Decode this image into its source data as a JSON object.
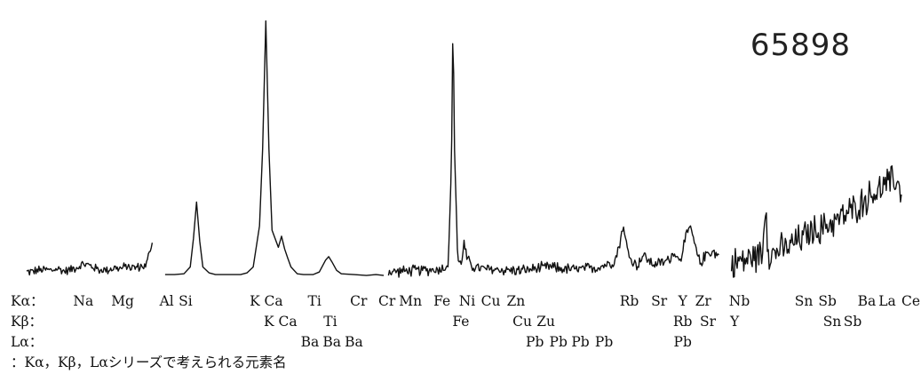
{
  "chart_data": {
    "type": "line",
    "sample_id": "65898",
    "title": "",
    "xlabel": "",
    "ylabel": "",
    "grid": false,
    "segments": [
      {
        "name": "",
        "points": [
          [
            0,
            6
          ],
          [
            20,
            7
          ],
          [
            40,
            8
          ],
          [
            60,
            9
          ],
          [
            80,
            8
          ],
          [
            100,
            10
          ],
          [
            120,
            7
          ],
          [
            140,
            9
          ],
          [
            160,
            12
          ],
          [
            180,
            15
          ],
          [
            200,
            14
          ],
          [
            220,
            10
          ],
          [
            240,
            8
          ],
          [
            260,
            9
          ],
          [
            280,
            11
          ],
          [
            300,
            10
          ],
          [
            320,
            13
          ],
          [
            340,
            11
          ],
          [
            360,
            12
          ],
          [
            380,
            14
          ],
          [
            400,
            42
          ]
        ],
        "noise": 4
      },
      {
        "name": "",
        "points": [
          [
            440,
            3
          ],
          [
            470,
            3
          ],
          [
            500,
            4
          ],
          [
            520,
            12
          ],
          [
            530,
            45
          ],
          [
            540,
            88
          ],
          [
            550,
            42
          ],
          [
            560,
            12
          ],
          [
            580,
            5
          ],
          [
            600,
            3
          ],
          [
            640,
            3
          ],
          [
            680,
            3
          ],
          [
            700,
            5
          ],
          [
            720,
            12
          ],
          [
            740,
            60
          ],
          [
            750,
            150
          ],
          [
            760,
            300
          ],
          [
            770,
            150
          ],
          [
            780,
            55
          ],
          [
            800,
            35
          ],
          [
            810,
            48
          ],
          [
            820,
            33
          ],
          [
            830,
            22
          ],
          [
            840,
            12
          ],
          [
            860,
            4
          ],
          [
            880,
            3
          ],
          [
            910,
            3
          ],
          [
            930,
            6
          ],
          [
            950,
            20
          ],
          [
            960,
            24
          ],
          [
            970,
            18
          ],
          [
            985,
            8
          ],
          [
            1000,
            4
          ],
          [
            1040,
            3
          ],
          [
            1080,
            2
          ],
          [
            1110,
            3
          ],
          [
            1135,
            2
          ]
        ],
        "noise": 0
      },
      {
        "name": "",
        "points": [
          [
            1150,
            6
          ],
          [
            1200,
            7
          ],
          [
            1250,
            8
          ],
          [
            1300,
            9
          ],
          [
            1320,
            10
          ],
          [
            1340,
            15
          ],
          [
            1350,
            130
          ],
          [
            1355,
            302
          ],
          [
            1360,
            150
          ],
          [
            1370,
            20
          ],
          [
            1380,
            14
          ],
          [
            1390,
            40
          ],
          [
            1400,
            20
          ],
          [
            1420,
            12
          ],
          [
            1460,
            9
          ],
          [
            1500,
            9
          ],
          [
            1540,
            8
          ],
          [
            1580,
            8
          ],
          [
            1620,
            10
          ],
          [
            1660,
            12
          ],
          [
            1700,
            10
          ],
          [
            1740,
            9
          ],
          [
            1780,
            10
          ],
          [
            1820,
            12
          ],
          [
            1850,
            16
          ],
          [
            1870,
            20
          ],
          [
            1885,
            40
          ],
          [
            1895,
            60
          ],
          [
            1905,
            40
          ],
          [
            1920,
            20
          ],
          [
            1940,
            14
          ],
          [
            1960,
            26
          ],
          [
            1980,
            18
          ],
          [
            2000,
            15
          ],
          [
            2030,
            18
          ],
          [
            2050,
            25
          ],
          [
            2060,
            30
          ],
          [
            2070,
            20
          ],
          [
            2080,
            25
          ],
          [
            2090,
            40
          ],
          [
            2100,
            50
          ],
          [
            2110,
            60
          ],
          [
            2120,
            42
          ],
          [
            2130,
            28
          ],
          [
            2140,
            16
          ],
          [
            2160,
            28
          ],
          [
            2180,
            30
          ],
          [
            2200,
            25
          ]
        ],
        "noise": 5
      },
      {
        "name": "",
        "points": [
          [
            2240,
            15
          ],
          [
            2260,
            18
          ],
          [
            2280,
            20
          ],
          [
            2300,
            22
          ],
          [
            2320,
            25
          ],
          [
            2340,
            30
          ],
          [
            2345,
            70
          ],
          [
            2350,
            90
          ],
          [
            2355,
            40
          ],
          [
            2360,
            25
          ],
          [
            2380,
            30
          ],
          [
            2400,
            32
          ],
          [
            2420,
            35
          ],
          [
            2440,
            40
          ],
          [
            2460,
            45
          ],
          [
            2480,
            50
          ],
          [
            2500,
            55
          ],
          [
            2520,
            55
          ],
          [
            2540,
            60
          ],
          [
            2560,
            65
          ],
          [
            2580,
            68
          ],
          [
            2600,
            72
          ],
          [
            2620,
            78
          ],
          [
            2640,
            82
          ],
          [
            2660,
            90
          ],
          [
            2680,
            95
          ],
          [
            2700,
            100
          ],
          [
            2720,
            105
          ],
          [
            2740,
            110
          ],
          [
            2760,
            115
          ],
          [
            2780,
            100
          ]
        ],
        "noise": 14
      }
    ],
    "xlim": [
      0,
      2800
    ],
    "ylim": [
      0,
      310
    ],
    "label_rows": [
      {
        "header": "Kα：",
        "labels": [
          {
            "text": "Na",
            "x": 180
          },
          {
            "text": "Mg",
            "x": 305
          },
          {
            "text": "Al",
            "x": 445
          },
          {
            "text": "Si",
            "x": 505
          },
          {
            "text": "K",
            "x": 725
          },
          {
            "text": "Ca",
            "x": 785
          },
          {
            "text": "Ti",
            "x": 915
          },
          {
            "text": "Cr",
            "x": 1055
          },
          {
            "text": "Cr",
            "x": 1145
          },
          {
            "text": "Mn",
            "x": 1220
          },
          {
            "text": "Fe",
            "x": 1320
          },
          {
            "text": "Ni",
            "x": 1400
          },
          {
            "text": "Cu",
            "x": 1475
          },
          {
            "text": "Zn",
            "x": 1555
          },
          {
            "text": "Rb",
            "x": 1915
          },
          {
            "text": "Sr",
            "x": 2010
          },
          {
            "text": "Y",
            "x": 2085
          },
          {
            "text": "Zr",
            "x": 2150
          },
          {
            "text": "Nb",
            "x": 2265
          },
          {
            "text": "Sn",
            "x": 2470
          },
          {
            "text": "Sb",
            "x": 2545
          },
          {
            "text": "Ba",
            "x": 2670
          },
          {
            "text": "La",
            "x": 2735
          },
          {
            "text": "Ce",
            "x": 2810
          }
        ]
      },
      {
        "header": "Kβ：",
        "labels": [
          {
            "text": "K",
            "x": 770
          },
          {
            "text": "Ca",
            "x": 830
          },
          {
            "text": "Ti",
            "x": 965
          },
          {
            "text": "Fe",
            "x": 1380
          },
          {
            "text": "Cu",
            "x": 1575
          },
          {
            "text": "Zu",
            "x": 1650
          },
          {
            "text": "Rb",
            "x": 2085
          },
          {
            "text": "Sr",
            "x": 2165
          },
          {
            "text": "Y",
            "x": 2250
          },
          {
            "text": "Sn",
            "x": 2560
          },
          {
            "text": "Sb",
            "x": 2625
          }
        ]
      },
      {
        "header": "Lα：",
        "labels": [
          {
            "text": "Ba",
            "x": 900
          },
          {
            "text": "Ba",
            "x": 970
          },
          {
            "text": "Ba",
            "x": 1040
          },
          {
            "text": "Pb",
            "x": 1615
          },
          {
            "text": "Pb",
            "x": 1690
          },
          {
            "text": "Pb",
            "x": 1760
          },
          {
            "text": "Pb",
            "x": 1835
          },
          {
            "text": "Pb",
            "x": 2085
          }
        ]
      }
    ],
    "footnote": "：Kα，Kβ，Lαシリーズで考えられる元素名"
  }
}
